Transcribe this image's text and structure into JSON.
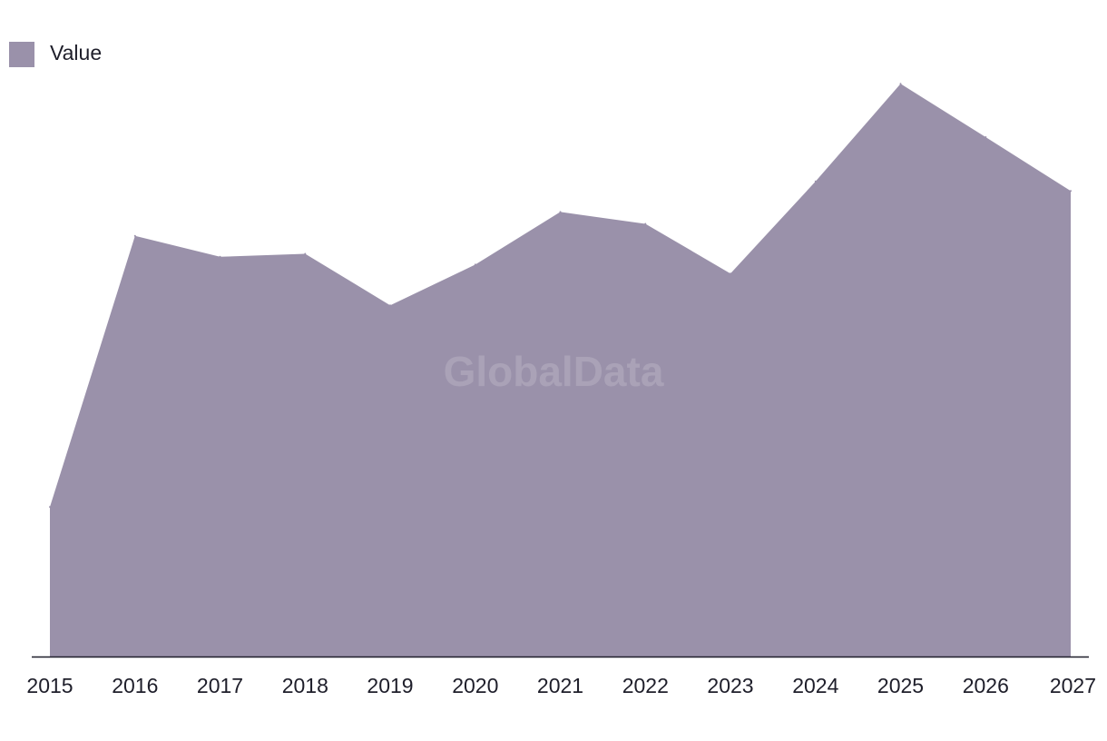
{
  "chart_data": {
    "type": "area",
    "x": [
      "2015",
      "2016",
      "2017",
      "2018",
      "2019",
      "2020",
      "2021",
      "2022",
      "2023",
      "2024",
      "2025",
      "2026",
      "2027"
    ],
    "series": [
      {
        "name": "Value",
        "values": [
          25,
          70.3,
          66.8,
          67.3,
          58.7,
          65.5,
          74.3,
          72.3,
          64,
          79.4,
          95.7,
          86.8,
          77.8
        ]
      }
    ],
    "ylim": [
      0,
      100
    ],
    "title": "",
    "xlabel": "",
    "ylabel": "",
    "grid": false,
    "legend_position": "top-left",
    "colors": {
      "area": "#9a91aa",
      "axis": "#1e1e2a",
      "text": "#1e1e2a"
    }
  },
  "watermark": "GlobalData"
}
